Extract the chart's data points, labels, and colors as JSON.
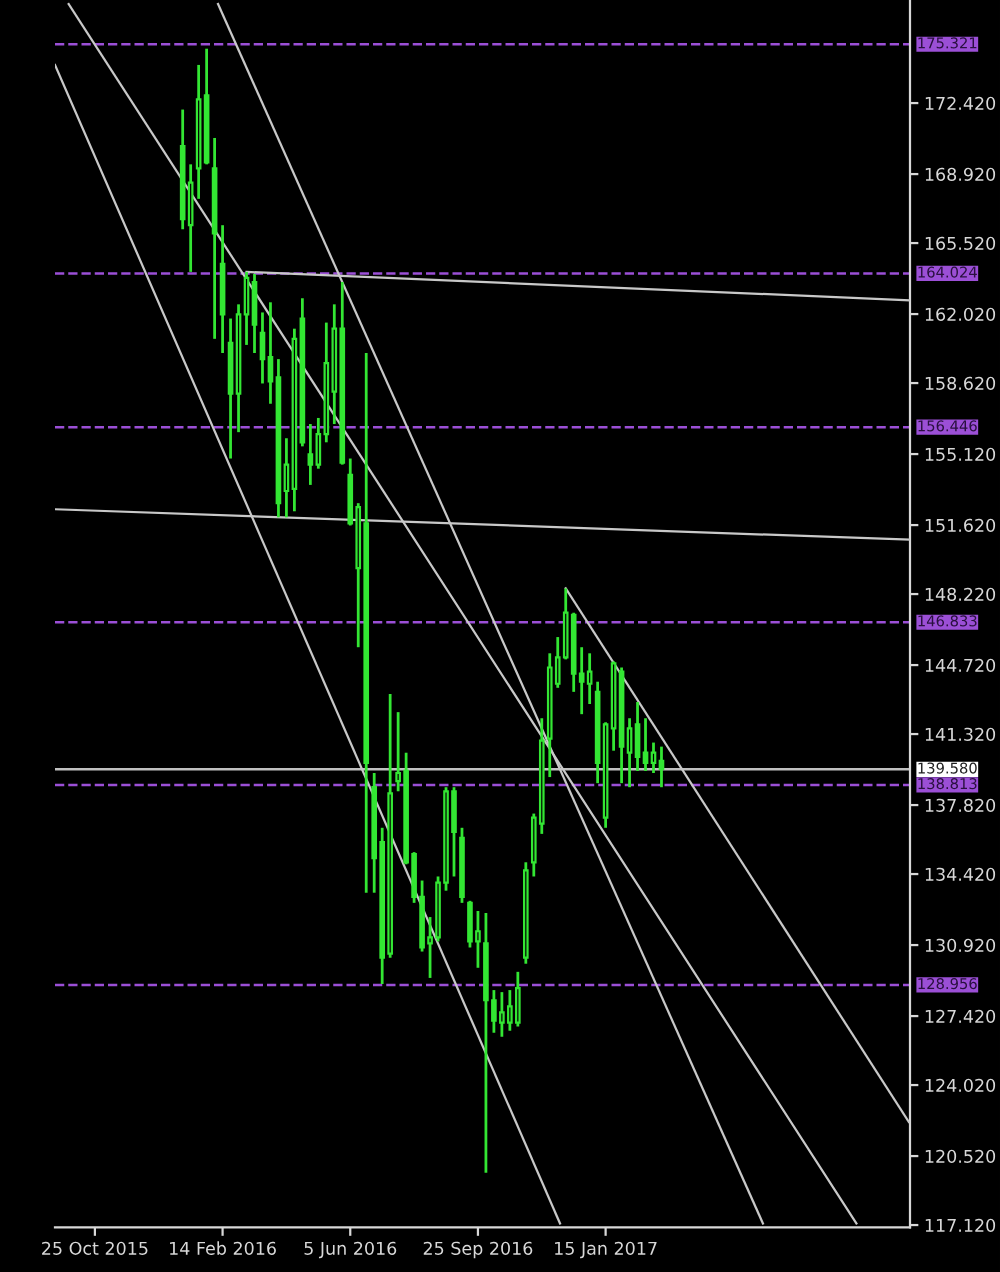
{
  "chart_data": {
    "type": "candlestick",
    "color": "#33e633",
    "x": [
      "2016-01-10",
      "2016-01-17",
      "2016-01-24",
      "2016-01-31",
      "2016-02-07",
      "2016-02-14",
      "2016-02-21",
      "2016-02-28",
      "2016-03-06",
      "2016-03-13",
      "2016-03-20",
      "2016-03-27",
      "2016-04-03",
      "2016-04-10",
      "2016-04-17",
      "2016-04-24",
      "2016-05-01",
      "2016-05-08",
      "2016-05-15",
      "2016-05-22",
      "2016-05-29",
      "2016-06-05",
      "2016-06-12",
      "2016-06-19",
      "2016-06-26",
      "2016-07-03",
      "2016-07-10",
      "2016-07-17",
      "2016-07-24",
      "2016-07-31",
      "2016-08-07",
      "2016-08-14",
      "2016-08-21",
      "2016-08-28",
      "2016-09-04",
      "2016-09-11",
      "2016-09-18",
      "2016-09-25",
      "2016-10-02",
      "2016-10-09",
      "2016-10-16",
      "2016-10-23",
      "2016-10-30",
      "2016-11-06",
      "2016-11-13",
      "2016-11-20",
      "2016-11-27",
      "2016-12-04",
      "2016-12-11",
      "2016-12-18",
      "2016-12-25",
      "2017-01-01",
      "2017-01-08",
      "2017-01-15",
      "2017-01-22",
      "2017-01-29",
      "2017-02-05",
      "2017-02-12",
      "2017-02-19",
      "2017-02-26",
      "2017-03-05"
    ],
    "ohlc": [
      [
        170.3,
        172.1,
        166.2,
        166.7
      ],
      [
        166.4,
        169.4,
        164.1,
        168.5
      ],
      [
        169.2,
        174.3,
        167.7,
        172.6
      ],
      [
        172.8,
        175.1,
        169.4,
        169.5
      ],
      [
        169.2,
        170.7,
        160.8,
        166.0
      ],
      [
        164.5,
        166.4,
        160.1,
        162.0
      ],
      [
        160.6,
        161.8,
        154.9,
        158.1
      ],
      [
        158.1,
        162.5,
        156.2,
        162.0
      ],
      [
        162.0,
        164.1,
        160.5,
        163.8
      ],
      [
        163.6,
        164.0,
        160.1,
        161.5
      ],
      [
        161.1,
        162.1,
        158.6,
        159.8
      ],
      [
        159.9,
        162.6,
        157.6,
        158.7
      ],
      [
        158.9,
        159.8,
        152.0,
        152.7
      ],
      [
        153.3,
        155.9,
        152.0,
        154.6
      ],
      [
        153.4,
        161.3,
        152.3,
        160.8
      ],
      [
        161.8,
        162.8,
        155.5,
        155.7
      ],
      [
        155.1,
        156.6,
        153.6,
        154.6
      ],
      [
        154.6,
        156.9,
        154.4,
        156.1
      ],
      [
        156.1,
        161.6,
        155.7,
        159.6
      ],
      [
        158.2,
        162.5,
        156.6,
        161.3
      ],
      [
        161.3,
        163.6,
        154.6,
        154.7
      ],
      [
        154.1,
        154.9,
        151.6,
        151.7
      ],
      [
        149.5,
        152.7,
        145.6,
        152.5
      ],
      [
        151.7,
        160.1,
        133.5,
        139.9
      ],
      [
        138.7,
        139.4,
        133.5,
        135.2
      ],
      [
        136.0,
        136.7,
        129.0,
        130.3
      ],
      [
        130.5,
        143.3,
        130.3,
        138.4
      ],
      [
        139.0,
        142.4,
        138.5,
        139.4
      ],
      [
        139.5,
        140.4,
        134.9,
        135.0
      ],
      [
        135.4,
        135.5,
        133.0,
        133.3
      ],
      [
        133.3,
        134.1,
        130.6,
        130.8
      ],
      [
        131.0,
        132.3,
        129.3,
        131.3
      ],
      [
        131.3,
        134.3,
        131.1,
        134.0
      ],
      [
        134.0,
        138.7,
        133.6,
        138.5
      ],
      [
        138.5,
        138.7,
        134.3,
        136.5
      ],
      [
        136.2,
        136.7,
        133.0,
        133.3
      ],
      [
        133.0,
        133.1,
        130.8,
        131.1
      ],
      [
        131.1,
        132.6,
        129.8,
        131.6
      ],
      [
        131.0,
        132.5,
        119.7,
        128.2
      ],
      [
        128.2,
        128.7,
        126.6,
        127.2
      ],
      [
        127.1,
        128.6,
        126.4,
        127.6
      ],
      [
        127.1,
        128.7,
        126.7,
        127.9
      ],
      [
        127.1,
        129.6,
        126.9,
        128.8
      ],
      [
        130.3,
        135.0,
        130.0,
        134.6
      ],
      [
        135.0,
        137.4,
        134.3,
        137.2
      ],
      [
        136.9,
        142.1,
        136.4,
        141.0
      ],
      [
        141.1,
        145.3,
        139.2,
        144.6
      ],
      [
        143.8,
        146.1,
        143.6,
        145.1
      ],
      [
        145.1,
        148.5,
        145.0,
        147.3
      ],
      [
        147.2,
        147.3,
        143.4,
        144.3
      ],
      [
        144.3,
        145.6,
        142.3,
        143.9
      ],
      [
        143.8,
        145.3,
        142.8,
        144.4
      ],
      [
        143.4,
        143.9,
        138.9,
        139.9
      ],
      [
        137.2,
        141.9,
        136.7,
        141.8
      ],
      [
        141.6,
        144.9,
        140.5,
        144.8
      ],
      [
        144.4,
        144.6,
        138.9,
        140.7
      ],
      [
        140.4,
        142.1,
        138.7,
        141.6
      ],
      [
        141.8,
        142.9,
        139.5,
        140.2
      ],
      [
        140.4,
        142.1,
        139.5,
        139.9
      ],
      [
        139.9,
        140.9,
        139.4,
        140.4
      ],
      [
        140.0,
        140.7,
        138.7,
        139.6
      ]
    ],
    "series": [
      {
        "type": "line",
        "color": "#c8c8c8",
        "x": [
          "2015-09-20",
          "2016-12-06"
        ],
        "values": [
          174.3,
          117.2
        ]
      },
      {
        "type": "line",
        "color": "#c8c8c8",
        "x": [
          "2015-10-02",
          "2017-08-23"
        ],
        "values": [
          177.3,
          117.2
        ]
      },
      {
        "type": "line",
        "color": "#c8c8c8",
        "x": [
          "2016-02-10",
          "2017-06-02"
        ],
        "values": [
          177.3,
          117.2
        ]
      },
      {
        "type": "line",
        "color": "#c8c8c8",
        "x": [
          "2016-12-11",
          "2017-10-08"
        ],
        "values": [
          148.5,
          122.2
        ]
      },
      {
        "type": "line",
        "color": "#c8c8c8",
        "x": [
          "2016-03-06",
          "2017-10-08"
        ],
        "values": [
          164.1,
          162.7
        ]
      },
      {
        "type": "line",
        "color": "#c8c8c8",
        "x": [
          "2015-09-20",
          "2017-10-08"
        ],
        "values": [
          152.4,
          150.9
        ]
      }
    ],
    "ref_lines": [
      {
        "axis": "y",
        "value": 175.321,
        "label": "175.321",
        "color": "#9b4fd6",
        "line_style": "dashed"
      },
      {
        "axis": "y",
        "value": 164.024,
        "label": "164.024",
        "color": "#9b4fd6",
        "line_style": "dashed"
      },
      {
        "axis": "y",
        "value": 156.446,
        "label": "156.446",
        "color": "#9b4fd6",
        "line_style": "dashed"
      },
      {
        "axis": "y",
        "value": 146.833,
        "label": "146.833",
        "color": "#9b4fd6",
        "line_style": "dashed"
      },
      {
        "axis": "y",
        "value": 139.58,
        "label": "139.580",
        "color": "#c0c0c0",
        "line_style": "solid"
      },
      {
        "axis": "y",
        "value": 138.813,
        "label": "138.813",
        "color": "#9b4fd6",
        "line_style": "dashed"
      },
      {
        "axis": "y",
        "value": 128.956,
        "label": "128.956",
        "color": "#9b4fd6",
        "line_style": "dashed"
      }
    ],
    "xlim": [
      "2015-09-20",
      "2017-10-09"
    ],
    "ylim": [
      117.0,
      177.5
    ],
    "xticks": [
      {
        "value": "2015-10-25",
        "label": "25 Oct 2015"
      },
      {
        "value": "2016-02-14",
        "label": "14 Feb 2016"
      },
      {
        "value": "2016-06-05",
        "label": "5 Jun 2016"
      },
      {
        "value": "2016-09-25",
        "label": "25 Sep 2016"
      },
      {
        "value": "2017-01-15",
        "label": "15 Jan 2017"
      }
    ],
    "yticks": [
      {
        "value": 117.12,
        "label": "117.120"
      },
      {
        "value": 120.52,
        "label": "120.520"
      },
      {
        "value": 124.02,
        "label": "124.020"
      },
      {
        "value": 127.42,
        "label": "127.420"
      },
      {
        "value": 130.92,
        "label": "130.920"
      },
      {
        "value": 134.42,
        "label": "134.420"
      },
      {
        "value": 137.82,
        "label": "137.820"
      },
      {
        "value": 141.32,
        "label": "141.320"
      },
      {
        "value": 144.72,
        "label": "144.720"
      },
      {
        "value": 148.22,
        "label": "148.220"
      },
      {
        "value": 151.62,
        "label": "151.620"
      },
      {
        "value": 155.12,
        "label": "155.120"
      },
      {
        "value": 158.62,
        "label": "158.620"
      },
      {
        "value": 162.02,
        "label": "162.020"
      },
      {
        "value": 165.52,
        "label": "165.520"
      },
      {
        "value": 168.92,
        "label": "168.920"
      },
      {
        "value": 172.42,
        "label": "172.420"
      }
    ],
    "grid": false
  }
}
